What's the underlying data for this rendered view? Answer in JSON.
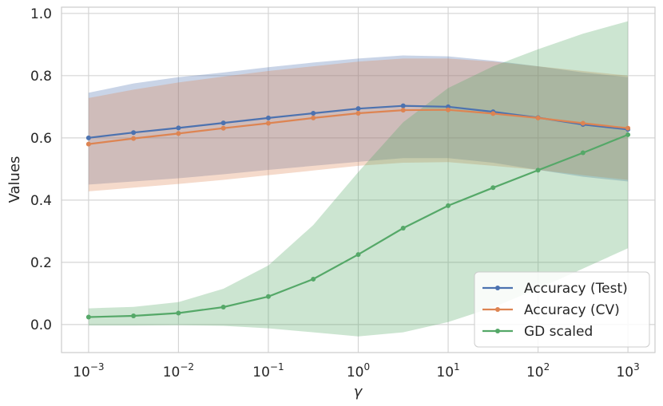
{
  "chart_data": {
    "type": "line",
    "xlabel": "γ",
    "ylabel": "Values",
    "xscale": "log",
    "xlim": [
      0.0005,
      2000
    ],
    "ylim": [
      -0.09,
      1.02
    ],
    "grid": true,
    "legend_position": "bottom-right",
    "x": [
      0.001,
      0.00316,
      0.01,
      0.0316,
      0.1,
      0.316,
      1,
      3.16,
      10,
      31.6,
      100,
      316,
      1000
    ],
    "x_ticks": [
      {
        "value": 0.001,
        "base": "10",
        "exp": "−3"
      },
      {
        "value": 0.01,
        "base": "10",
        "exp": "−2"
      },
      {
        "value": 0.1,
        "base": "10",
        "exp": "−1"
      },
      {
        "value": 1,
        "base": "10",
        "exp": "0"
      },
      {
        "value": 10,
        "base": "10",
        "exp": "1"
      },
      {
        "value": 100,
        "base": "10",
        "exp": "2"
      },
      {
        "value": 1000,
        "base": "10",
        "exp": "3"
      }
    ],
    "y_ticks": [
      {
        "value": 0.0,
        "label": "0.0"
      },
      {
        "value": 0.2,
        "label": "0.2"
      },
      {
        "value": 0.4,
        "label": "0.4"
      },
      {
        "value": 0.6,
        "label": "0.6"
      },
      {
        "value": 0.8,
        "label": "0.8"
      },
      {
        "value": 1.0,
        "label": "1.0"
      }
    ],
    "series": [
      {
        "name": "Accuracy (Test)",
        "color": "#4c72b0",
        "values": [
          0.6,
          0.617,
          0.632,
          0.648,
          0.664,
          0.679,
          0.694,
          0.703,
          0.7,
          0.684,
          0.665,
          0.643,
          0.627
        ],
        "upper": [
          0.745,
          0.775,
          0.795,
          0.81,
          0.827,
          0.842,
          0.855,
          0.865,
          0.862,
          0.848,
          0.83,
          0.81,
          0.795
        ],
        "lower": [
          0.45,
          0.46,
          0.47,
          0.483,
          0.497,
          0.51,
          0.523,
          0.535,
          0.535,
          0.52,
          0.497,
          0.475,
          0.46
        ]
      },
      {
        "name": "Accuracy (CV)",
        "color": "#dd8452",
        "values": [
          0.58,
          0.598,
          0.614,
          0.631,
          0.647,
          0.664,
          0.679,
          0.689,
          0.69,
          0.678,
          0.664,
          0.647,
          0.631
        ],
        "upper": [
          0.728,
          0.755,
          0.778,
          0.797,
          0.815,
          0.83,
          0.845,
          0.855,
          0.855,
          0.845,
          0.83,
          0.815,
          0.8
        ],
        "lower": [
          0.428,
          0.44,
          0.452,
          0.465,
          0.48,
          0.495,
          0.51,
          0.52,
          0.522,
          0.51,
          0.497,
          0.48,
          0.465
        ]
      },
      {
        "name": "GD scaled",
        "color": "#55a868",
        "values": [
          0.024,
          0.028,
          0.037,
          0.056,
          0.09,
          0.146,
          0.225,
          0.31,
          0.382,
          0.44,
          0.496,
          0.552,
          0.61
        ],
        "upper": [
          0.052,
          0.057,
          0.072,
          0.115,
          0.19,
          0.32,
          0.49,
          0.65,
          0.76,
          0.83,
          0.885,
          0.935,
          0.975
        ],
        "lower": [
          -0.003,
          -0.003,
          -0.002,
          -0.004,
          -0.012,
          -0.025,
          -0.038,
          -0.025,
          0.008,
          0.055,
          0.115,
          0.18,
          0.245
        ]
      }
    ]
  }
}
